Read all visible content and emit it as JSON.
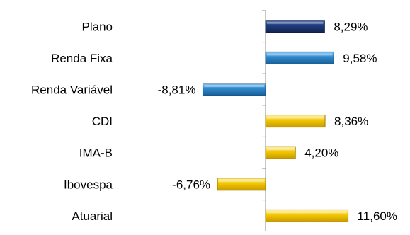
{
  "chart_data": {
    "type": "bar",
    "orientation": "horizontal",
    "title": "",
    "xlabel": "",
    "ylabel": "",
    "categories": [
      "Plano",
      "Renda Fixa",
      "Renda Variável",
      "CDI",
      "IMA-B",
      "Ibovespa",
      "Atuarial"
    ],
    "values": [
      8.29,
      9.58,
      -8.81,
      8.36,
      4.2,
      -6.76,
      11.6
    ],
    "data_labels": [
      "8,29%",
      "9,58%",
      "-8,81%",
      "8,36%",
      "4,20%",
      "-6,76%",
      "11,60%"
    ],
    "bar_colors": [
      "#1f3b7a",
      "#2e86c9",
      "#2e86c9",
      "#f2c500",
      "#f2c500",
      "#f2c500",
      "#f2c500"
    ],
    "xlim": [
      -11,
      14
    ],
    "grid": false,
    "legend": "none"
  }
}
